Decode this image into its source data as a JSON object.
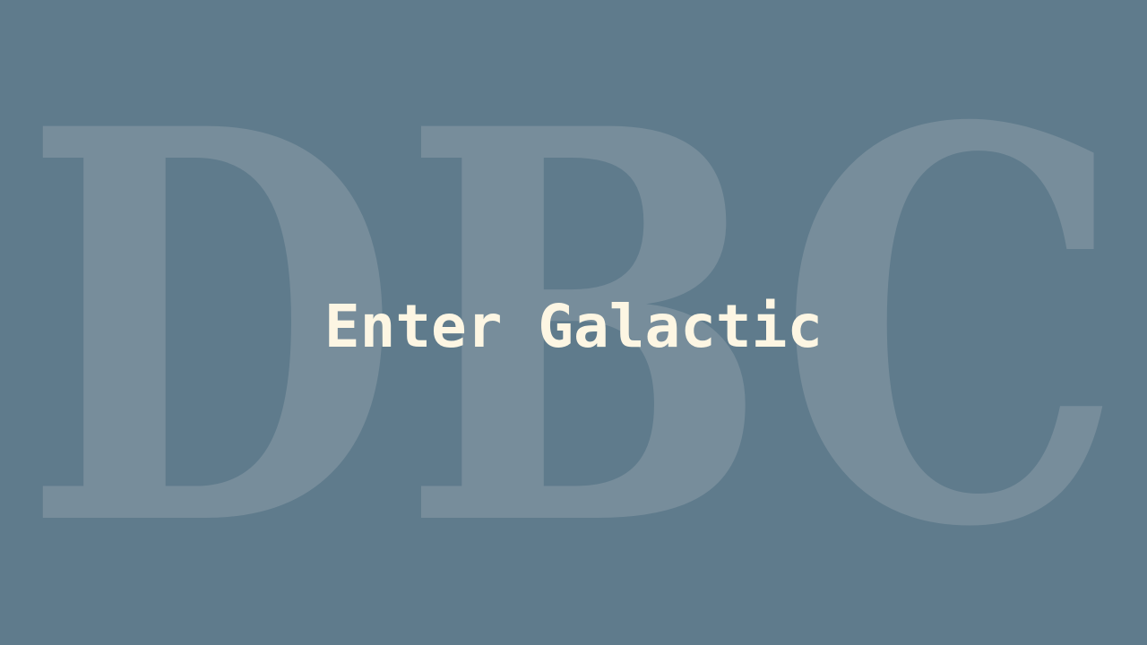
{
  "background_lettering": "DBC",
  "title": "Enter Galactic",
  "colors": {
    "background": "#5f7b8c",
    "lettering": "#778d9b",
    "title_text": "#fdf6e3"
  }
}
